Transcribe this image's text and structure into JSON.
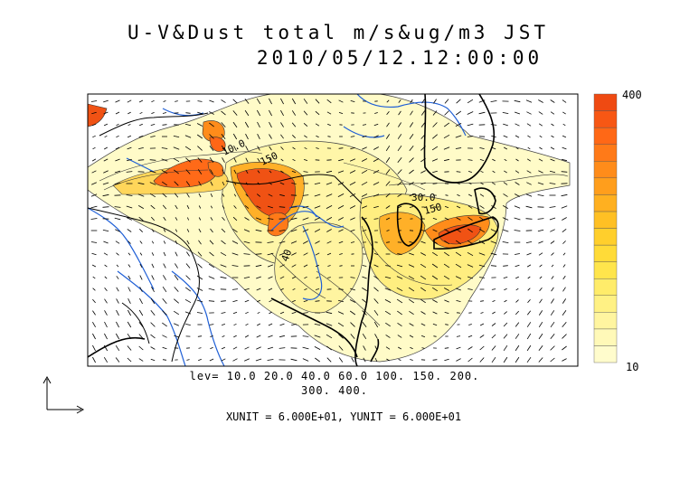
{
  "title": {
    "line1": "U-V&Dust total m/s&ug/m3 JST",
    "line2": "2010/05/12.12:00:00"
  },
  "colorbar": {
    "max_label": "400",
    "min_label": "10",
    "colors": [
      "#fffccc",
      "#fff9b8",
      "#fff5a0",
      "#fff184",
      "#ffec6a",
      "#ffe54c",
      "#ffdb38",
      "#ffcf2c",
      "#ffc024",
      "#ffb020",
      "#ff9e1c",
      "#ff8c1a",
      "#ff7a18",
      "#ff6816",
      "#f75714",
      "#ef4a12"
    ]
  },
  "contour_labels": [
    "10.0",
    "150",
    "30.0",
    "150",
    "40"
  ],
  "levels_line1": "lev= 10.0 20.0 40.0 60.0 100. 150. 200.",
  "levels_line2": "300. 400.",
  "units_text": "XUNIT = 6.000E+01, YUNIT = 6.000E+01",
  "colors": {
    "river": "#1f5fd6",
    "coast": "#000000",
    "frame": "#000000"
  }
}
